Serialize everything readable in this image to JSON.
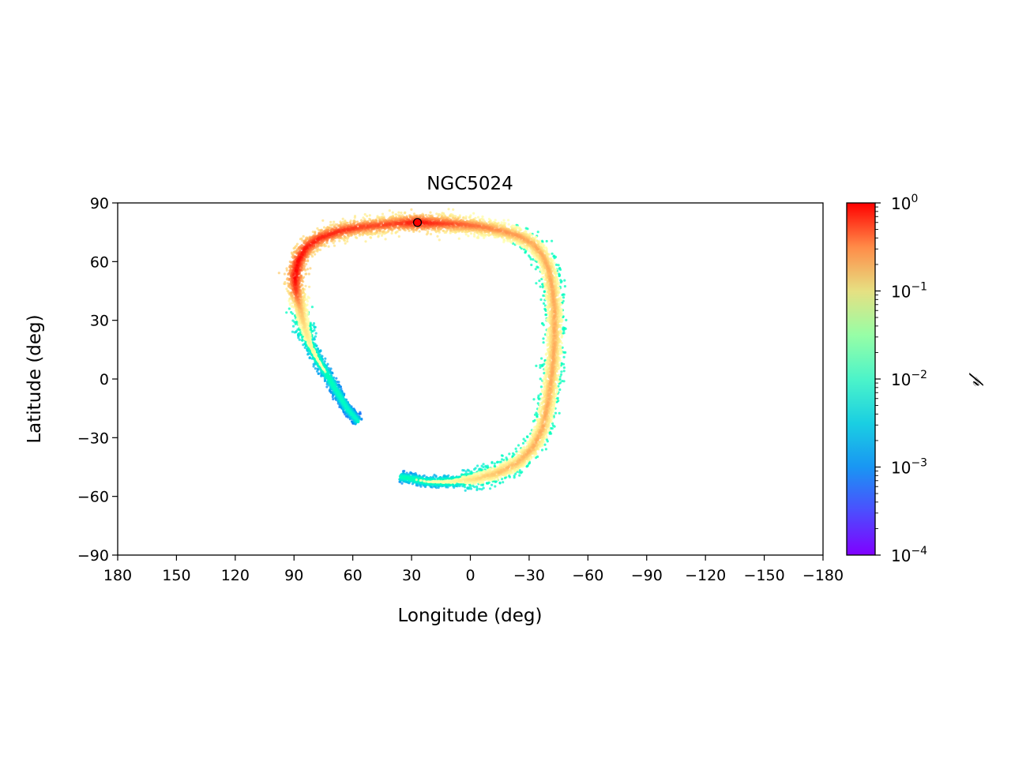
{
  "chart_data": {
    "type": "scatter",
    "title": "NGC5024",
    "xlabel": "Longitude (deg)",
    "ylabel": "Latitude (deg)",
    "xlim": [
      180,
      -180
    ],
    "ylim": [
      -90,
      90
    ],
    "xticks": [
      180,
      150,
      120,
      90,
      60,
      30,
      0,
      -30,
      -60,
      -90,
      -120,
      -150,
      -180
    ],
    "xtick_labels": [
      "180",
      "150",
      "120",
      "90",
      "60",
      "30",
      "0",
      "−30",
      "−60",
      "−90",
      "−120",
      "−150",
      "−180"
    ],
    "yticks": [
      90,
      60,
      30,
      0,
      -30,
      -60,
      -90
    ],
    "ytick_labels": [
      "90",
      "60",
      "30",
      "0",
      "−30",
      "−60",
      "−90"
    ],
    "grid": false,
    "colorbar": {
      "label": "𝓅",
      "scale": "log",
      "range": [
        0.0001,
        1
      ],
      "cmap": "rainbow",
      "ticks": [
        {
          "base": "10",
          "exp": "0"
        },
        {
          "base": "10",
          "exp": "−1"
        },
        {
          "base": "10",
          "exp": "−2"
        },
        {
          "base": "10",
          "exp": "−3"
        },
        {
          "base": "10",
          "exp": "−4"
        }
      ]
    },
    "stream_track": [
      {
        "lon": 27,
        "lat": 80,
        "p": 0.9
      },
      {
        "lon": 15,
        "lat": 79.5,
        "p": 0.5
      },
      {
        "lon": 5,
        "lat": 79,
        "p": 0.35
      },
      {
        "lon": -5,
        "lat": 78,
        "p": 0.25
      },
      {
        "lon": -15,
        "lat": 76,
        "p": 0.18
      },
      {
        "lon": -25,
        "lat": 73,
        "p": 0.15
      },
      {
        "lon": -32,
        "lat": 69,
        "p": 0.13
      },
      {
        "lon": -37,
        "lat": 63,
        "p": 0.12
      },
      {
        "lon": -40,
        "lat": 56,
        "p": 0.12
      },
      {
        "lon": -42,
        "lat": 45,
        "p": 0.12
      },
      {
        "lon": -43,
        "lat": 35,
        "p": 0.12
      },
      {
        "lon": -43,
        "lat": 20,
        "p": 0.12
      },
      {
        "lon": -42,
        "lat": 5,
        "p": 0.12
      },
      {
        "lon": -40,
        "lat": -10,
        "p": 0.12
      },
      {
        "lon": -37,
        "lat": -25,
        "p": 0.12
      },
      {
        "lon": -32,
        "lat": -35,
        "p": 0.12
      },
      {
        "lon": -24,
        "lat": -43,
        "p": 0.1
      },
      {
        "lon": -14,
        "lat": -48,
        "p": 0.09
      },
      {
        "lon": -3,
        "lat": -51,
        "p": 0.05
      },
      {
        "lon": 10,
        "lat": -52.5,
        "p": 0.02
      },
      {
        "lon": 22,
        "lat": -52.5,
        "p": 0.012
      },
      {
        "lon": 30,
        "lat": -51,
        "p": 0.01
      },
      {
        "lon": 36,
        "lat": -50,
        "p": 0.008
      },
      {
        "lon": 27,
        "lat": 80,
        "p": 0.9
      },
      {
        "lon": 37,
        "lat": 79.5,
        "p": 0.5
      },
      {
        "lon": 47,
        "lat": 78.5,
        "p": 0.45
      },
      {
        "lon": 57,
        "lat": 77.5,
        "p": 0.5
      },
      {
        "lon": 67,
        "lat": 75.5,
        "p": 0.6
      },
      {
        "lon": 77,
        "lat": 72,
        "p": 0.7
      },
      {
        "lon": 84,
        "lat": 67,
        "p": 0.8
      },
      {
        "lon": 88,
        "lat": 60,
        "p": 0.95
      },
      {
        "lon": 89.5,
        "lat": 52,
        "p": 1.0
      },
      {
        "lon": 89,
        "lat": 45,
        "p": 0.5
      },
      {
        "lon": 87,
        "lat": 37,
        "p": 0.12
      },
      {
        "lon": 85,
        "lat": 28,
        "p": 0.05
      },
      {
        "lon": 82,
        "lat": 18,
        "p": 0.025
      },
      {
        "lon": 78,
        "lat": 10,
        "p": 0.015
      },
      {
        "lon": 73,
        "lat": 2,
        "p": 0.01
      },
      {
        "lon": 69,
        "lat": -5,
        "p": 0.008
      },
      {
        "lon": 63,
        "lat": -15,
        "p": 0.006
      },
      {
        "lon": 57,
        "lat": -22,
        "p": 0.005
      }
    ],
    "progenitor": {
      "lon": 27,
      "lat": 80
    }
  }
}
